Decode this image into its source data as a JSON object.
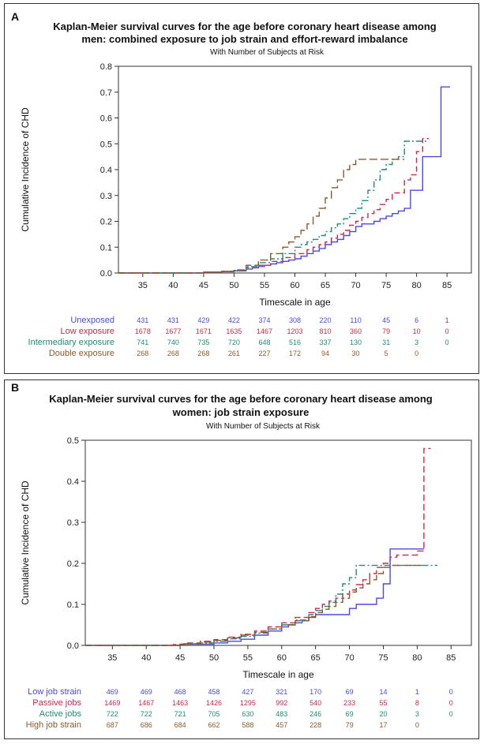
{
  "chart_data": [
    {
      "type": "line",
      "step": true,
      "panel_label": "A",
      "title_line1": "Kaplan-Meier survival curves for the age before coronary heart disease among",
      "title_line2": "men: combined exposure to job strain and effort-reward imbalance",
      "subtitle": "With Number of Subjects at Risk",
      "xlabel": "Timescale in age",
      "ylabel": "Cumulative Incidence of CHD",
      "xlim": [
        31,
        89
      ],
      "ylim": [
        0,
        0.8
      ],
      "xticks": [
        35,
        40,
        45,
        50,
        55,
        60,
        65,
        70,
        75,
        80,
        85
      ],
      "xtick_labels": [
        "35",
        "40",
        "45",
        "50",
        "55",
        "60",
        "65",
        "70",
        "75",
        "80",
        "85"
      ],
      "yticks": [
        0.0,
        0.1,
        0.2,
        0.3,
        0.4,
        0.5,
        0.6,
        0.7,
        0.8
      ],
      "ytick_labels": [
        "0.0",
        "0.1",
        "0.2",
        "0.3",
        "0.4",
        "0.5",
        "0.6",
        "0.7",
        "0.8"
      ],
      "risk_times": [
        35,
        40,
        45,
        50,
        55,
        60,
        65,
        70,
        75,
        80,
        85
      ],
      "series": [
        {
          "name": "Unexposed",
          "color": "#4a4ae8",
          "dash": "",
          "x": [
            31,
            45,
            48,
            50,
            52,
            53,
            54,
            55,
            56,
            57,
            58,
            59,
            60,
            61,
            62,
            63,
            64,
            65,
            66,
            67,
            68,
            69,
            70,
            71,
            72,
            73,
            74,
            75,
            76,
            77,
            78,
            79,
            81,
            82,
            84,
            85.5
          ],
          "y": [
            0,
            0.003,
            0.005,
            0.008,
            0.015,
            0.02,
            0.025,
            0.03,
            0.035,
            0.04,
            0.045,
            0.05,
            0.055,
            0.065,
            0.075,
            0.085,
            0.095,
            0.11,
            0.12,
            0.13,
            0.145,
            0.16,
            0.18,
            0.19,
            0.19,
            0.2,
            0.21,
            0.22,
            0.23,
            0.24,
            0.25,
            0.32,
            0.45,
            0.45,
            0.72,
            0.72
          ],
          "risk": [
            "431",
            "431",
            "429",
            "422",
            "374",
            "308",
            "220",
            "110",
            "45",
            "6",
            "1"
          ]
        },
        {
          "name": "Low exposure",
          "color": "#d0284a",
          "dash": "7,4",
          "x": [
            31,
            45,
            48,
            50,
            52,
            54,
            56,
            58,
            60,
            62,
            63,
            64,
            65,
            66,
            67,
            68,
            69,
            70,
            71,
            72,
            73,
            74,
            75,
            76,
            78,
            79,
            80,
            81,
            82
          ],
          "y": [
            0,
            0.003,
            0.006,
            0.01,
            0.02,
            0.03,
            0.045,
            0.06,
            0.075,
            0.09,
            0.1,
            0.11,
            0.12,
            0.135,
            0.15,
            0.165,
            0.185,
            0.2,
            0.215,
            0.23,
            0.245,
            0.265,
            0.285,
            0.31,
            0.36,
            0.38,
            0.47,
            0.52,
            0.52
          ],
          "risk": [
            "1678",
            "1677",
            "1671",
            "1635",
            "1467",
            "1203",
            "810",
            "360",
            "79",
            "10",
            "0"
          ]
        },
        {
          "name": "Intermediary exposure",
          "color": "#1f8c7a",
          "dash": "8,3,2,3",
          "x": [
            31,
            45,
            48,
            50,
            52,
            54,
            56,
            58,
            60,
            61,
            62,
            63,
            64,
            65,
            66,
            67,
            68,
            69,
            70,
            71,
            72,
            73,
            74,
            75,
            76,
            77,
            78,
            79,
            80,
            81,
            82
          ],
          "y": [
            0,
            0.003,
            0.006,
            0.01,
            0.025,
            0.04,
            0.055,
            0.075,
            0.1,
            0.11,
            0.12,
            0.13,
            0.145,
            0.16,
            0.175,
            0.19,
            0.21,
            0.23,
            0.25,
            0.28,
            0.32,
            0.36,
            0.4,
            0.42,
            0.44,
            0.45,
            0.51,
            0.51,
            0.51,
            0.51,
            0.51
          ],
          "risk": [
            "741",
            "740",
            "735",
            "720",
            "648",
            "516",
            "337",
            "130",
            "31",
            "3",
            "0"
          ]
        },
        {
          "name": "Double exposure",
          "color": "#8b5a2b",
          "dash": "10,4",
          "x": [
            31,
            45,
            48,
            50,
            52,
            54,
            56,
            58,
            59,
            60,
            61,
            62,
            63,
            64,
            65,
            66,
            67,
            68,
            69,
            70,
            71,
            72,
            73,
            74,
            75,
            76,
            77,
            78
          ],
          "y": [
            0,
            0.003,
            0.006,
            0.012,
            0.03,
            0.05,
            0.075,
            0.1,
            0.12,
            0.14,
            0.165,
            0.19,
            0.22,
            0.25,
            0.29,
            0.33,
            0.36,
            0.4,
            0.42,
            0.44,
            0.44,
            0.44,
            0.44,
            0.44,
            0.44,
            0.44,
            0.44,
            0.44
          ],
          "risk": [
            "268",
            "268",
            "268",
            "261",
            "227",
            "172",
            "94",
            "30",
            "5",
            "0",
            ""
          ]
        }
      ]
    },
    {
      "type": "line",
      "step": true,
      "panel_label": "B",
      "title_line1": "Kaplan-Meier survival curves for the age before coronary heart disease among",
      "title_line2": "women: job strain exposure",
      "subtitle": "With Number of Subjects at Risk",
      "xlabel": "Timescale in age",
      "ylabel": "Cumulative Incidence of CHD",
      "xlim": [
        31,
        88
      ],
      "ylim": [
        0,
        0.5
      ],
      "xticks": [
        35,
        40,
        45,
        50,
        55,
        60,
        65,
        70,
        75,
        80,
        85
      ],
      "xtick_labels": [
        "35",
        "40",
        "45",
        "50",
        "55",
        "60",
        "65",
        "70",
        "75",
        "80",
        "85"
      ],
      "yticks": [
        0.0,
        0.1,
        0.2,
        0.3,
        0.4,
        0.5
      ],
      "ytick_labels": [
        "0.0",
        "0.1",
        "0.2",
        "0.3",
        "0.4",
        "0.5"
      ],
      "risk_times": [
        35,
        40,
        45,
        50,
        55,
        60,
        65,
        70,
        75,
        80,
        85
      ],
      "series": [
        {
          "name": "Low job strain",
          "color": "#4a4ae8",
          "dash": "",
          "x": [
            31,
            45,
            50,
            52,
            54,
            56,
            58,
            60,
            61,
            62,
            63,
            64,
            65,
            67,
            69,
            70,
            71,
            72,
            73,
            74,
            75,
            76,
            78,
            80,
            81
          ],
          "y": [
            0,
            0.003,
            0.006,
            0.01,
            0.015,
            0.025,
            0.035,
            0.045,
            0.05,
            0.055,
            0.06,
            0.068,
            0.075,
            0.075,
            0.075,
            0.09,
            0.1,
            0.1,
            0.1,
            0.115,
            0.15,
            0.235,
            0.235,
            0.235,
            0.235
          ],
          "risk": [
            "469",
            "469",
            "468",
            "458",
            "427",
            "321",
            "170",
            "69",
            "14",
            "1",
            "0"
          ]
        },
        {
          "name": "Passive jobs",
          "color": "#d0284a",
          "dash": "8,4",
          "x": [
            31,
            44,
            46,
            48,
            50,
            52,
            54,
            56,
            58,
            60,
            62,
            64,
            65,
            66,
            67,
            68,
            69,
            70,
            71,
            72,
            73,
            74,
            75,
            76,
            77,
            78,
            79,
            80,
            81,
            82
          ],
          "y": [
            0,
            0.002,
            0.006,
            0.01,
            0.014,
            0.02,
            0.027,
            0.035,
            0.045,
            0.055,
            0.068,
            0.08,
            0.09,
            0.1,
            0.108,
            0.115,
            0.125,
            0.135,
            0.148,
            0.16,
            0.175,
            0.19,
            0.2,
            0.215,
            0.22,
            0.22,
            0.22,
            0.23,
            0.48,
            0.48
          ],
          "risk": [
            "1469",
            "1467",
            "1463",
            "1426",
            "1295",
            "992",
            "540",
            "233",
            "55",
            "8",
            "0"
          ]
        },
        {
          "name": "Active jobs",
          "color": "#1f8c7a",
          "dash": "8,3,2,3",
          "x": [
            31,
            45,
            48,
            50,
            52,
            54,
            56,
            58,
            60,
            62,
            64,
            65,
            66,
            67,
            68,
            69,
            70,
            71,
            72,
            73,
            74,
            75,
            76,
            78,
            80,
            82,
            83
          ],
          "y": [
            0,
            0.003,
            0.006,
            0.01,
            0.016,
            0.022,
            0.03,
            0.04,
            0.05,
            0.062,
            0.075,
            0.085,
            0.095,
            0.105,
            0.125,
            0.15,
            0.165,
            0.195,
            0.195,
            0.195,
            0.195,
            0.195,
            0.195,
            0.195,
            0.195,
            0.195,
            0.195
          ],
          "risk": [
            "722",
            "722",
            "721",
            "705",
            "630",
            "483",
            "246",
            "69",
            "20",
            "3",
            "0"
          ]
        },
        {
          "name": "High job strain",
          "color": "#8b5a2b",
          "dash": "10,4",
          "x": [
            31,
            45,
            48,
            50,
            52,
            54,
            56,
            58,
            60,
            62,
            64,
            65,
            66,
            67,
            68,
            69,
            70,
            71,
            72,
            73,
            74,
            75,
            76,
            77,
            78,
            79,
            80,
            81
          ],
          "y": [
            0,
            0.004,
            0.008,
            0.012,
            0.018,
            0.025,
            0.032,
            0.04,
            0.05,
            0.06,
            0.07,
            0.08,
            0.088,
            0.095,
            0.105,
            0.115,
            0.13,
            0.14,
            0.15,
            0.16,
            0.175,
            0.19,
            0.195,
            0.195,
            0.195,
            0.195,
            0.195,
            0.195
          ],
          "risk": [
            "687",
            "686",
            "684",
            "662",
            "588",
            "457",
            "228",
            "79",
            "17",
            "0",
            ""
          ]
        }
      ]
    }
  ]
}
